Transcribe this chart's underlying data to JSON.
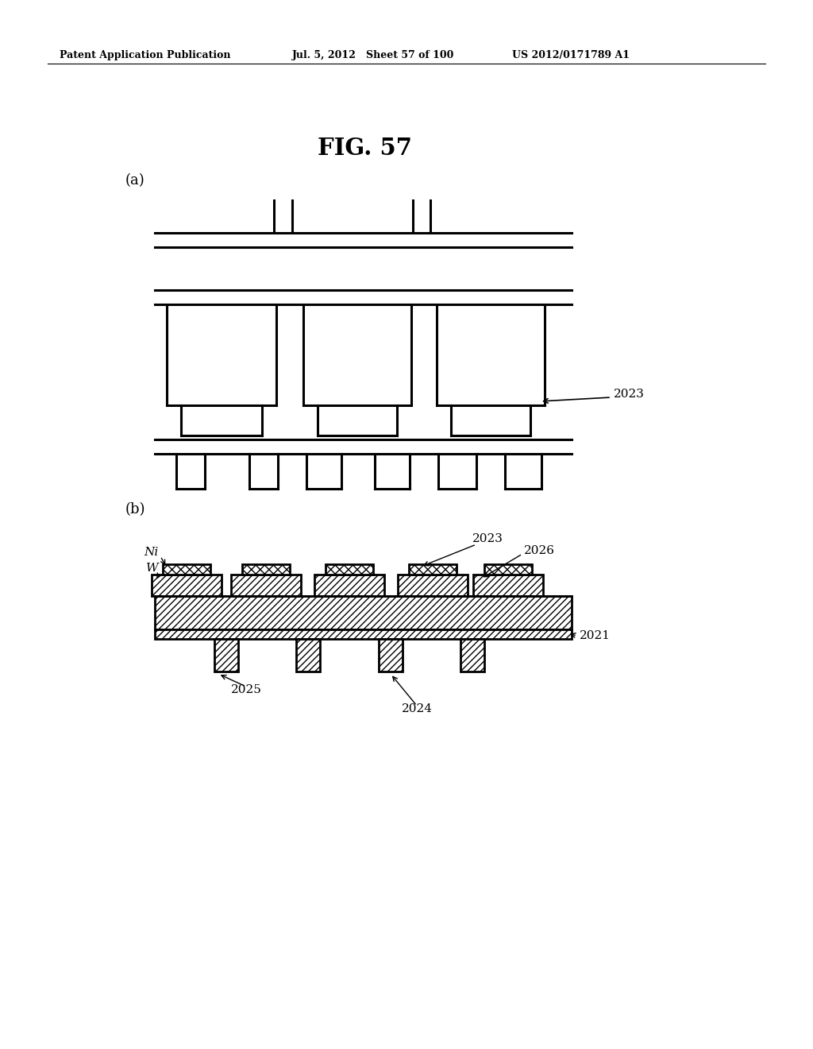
{
  "header_left": "Patent Application Publication",
  "header_mid": "Jul. 5, 2012   Sheet 57 of 100",
  "header_right": "US 2012/0171789 A1",
  "fig_title": "FIG. 57",
  "label_a": "(a)",
  "label_b": "(b)",
  "bg_color": "#ffffff",
  "line_color": "#000000",
  "label_2023_a": "2023",
  "label_2021": "2021",
  "label_2023_b": "2023",
  "label_2024": "2024",
  "label_2025": "2025",
  "label_2026": "2026",
  "label_Ni": "Ni",
  "label_W": "W"
}
